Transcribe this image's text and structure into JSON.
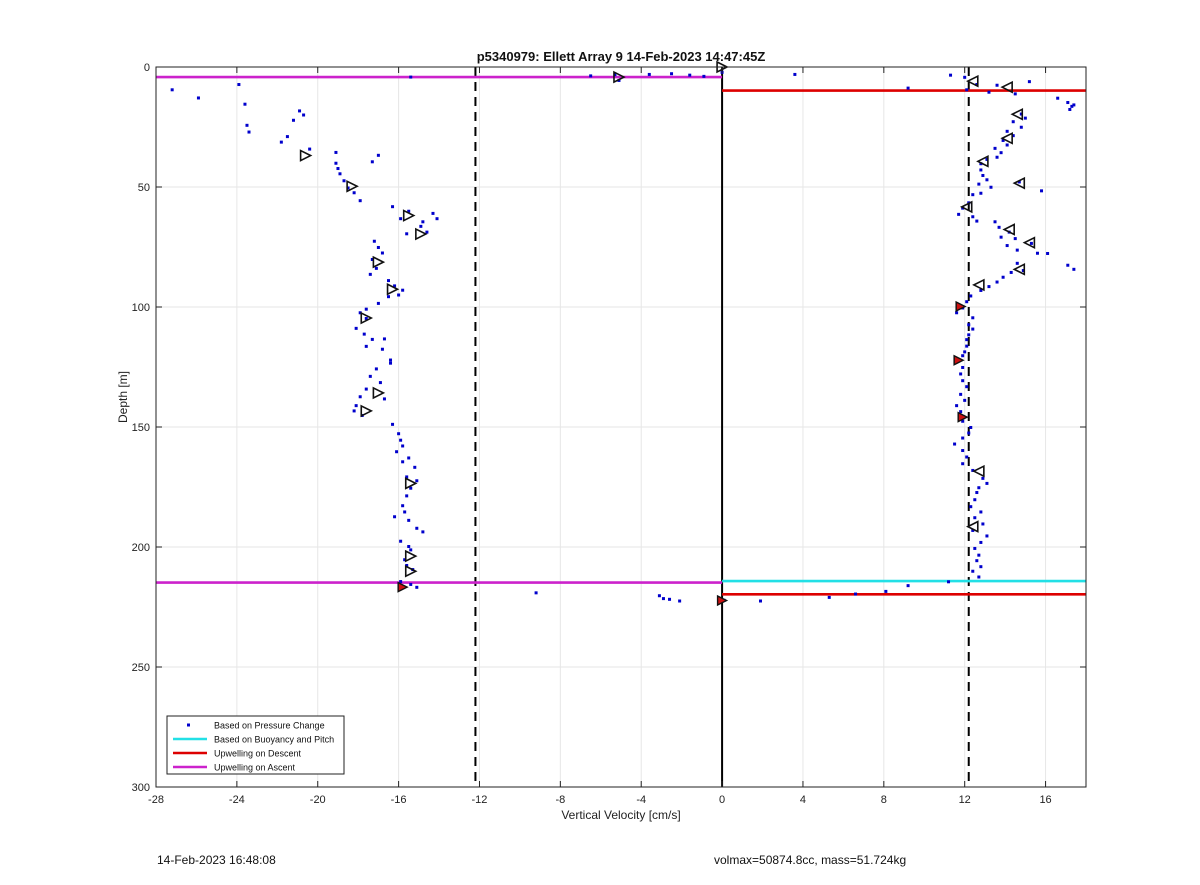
{
  "chart_data": {
    "type": "scatter",
    "title": "p5340979: Ellett Array 9 14-Feb-2023 14:47:45Z",
    "xlabel": "Vertical Velocity [cm/s]",
    "ylabel": "Depth [m]",
    "xlim": [
      -28,
      18
    ],
    "ylim": [
      300,
      0
    ],
    "y_reversed": true,
    "grid": true,
    "xticks": [
      "-28",
      "-24",
      "-20",
      "-16",
      "-12",
      "-8",
      "-4",
      "0",
      "4",
      "8",
      "12",
      "16"
    ],
    "xtick_values": [
      -28,
      -24,
      -20,
      -16,
      -12,
      -8,
      -4,
      0,
      4,
      8,
      12,
      16
    ],
    "yticks": [
      "0",
      "50",
      "100",
      "150",
      "200",
      "250",
      "300"
    ],
    "ytick_values": [
      0,
      50,
      100,
      150,
      200,
      250,
      300
    ],
    "legend_position": "bottom-left",
    "legend": [
      {
        "label": "Based on Pressure Change",
        "color": "#0000cc",
        "style": "dot"
      },
      {
        "label": "Based on Buoyancy and Pitch",
        "color": "#22e0e6",
        "style": "line"
      },
      {
        "label": "Upwelling on Descent",
        "color": "#dd0000",
        "style": "line"
      },
      {
        "label": "Upwelling on Ascent",
        "color": "#cc22cc",
        "style": "line"
      }
    ],
    "vertical_lines": [
      {
        "x": 0,
        "style": "solid",
        "color": "#000000"
      },
      {
        "x": -12.2,
        "style": "dashed",
        "color": "#000000"
      },
      {
        "x": 12.2,
        "style": "dashed",
        "color": "#000000"
      }
    ],
    "series": [
      {
        "name": "Based on Pressure Change",
        "color": "#0000cc",
        "points": [
          [
            -27.2,
            9.5
          ],
          [
            -25.9,
            12.9
          ],
          [
            -23.9,
            7.3
          ],
          [
            -23.6,
            15.5
          ],
          [
            -23.5,
            24.3
          ],
          [
            -23.4,
            27.1
          ],
          [
            -21.8,
            31.3
          ],
          [
            -21.5,
            29
          ],
          [
            -21.2,
            22.2
          ],
          [
            -20.9,
            18.3
          ],
          [
            -20.7,
            20
          ],
          [
            -20.4,
            34.2
          ],
          [
            -19.1,
            35.6
          ],
          [
            -19.1,
            40.1
          ],
          [
            -19,
            42.3
          ],
          [
            -18.9,
            44.5
          ],
          [
            -18.7,
            47.4
          ],
          [
            -18.5,
            50.4
          ],
          [
            -18.2,
            52.4
          ],
          [
            -17.9,
            55.7
          ],
          [
            -17.3,
            39.5
          ],
          [
            -17,
            36.8
          ],
          [
            -16.3,
            58.2
          ],
          [
            -15.5,
            60.1
          ],
          [
            -15.6,
            69.5
          ],
          [
            -15.9,
            63.2
          ],
          [
            -14.9,
            66.4
          ],
          [
            -14.6,
            68.8
          ],
          [
            -14.1,
            63.2
          ],
          [
            -14.3,
            61
          ],
          [
            -14.8,
            64.5
          ],
          [
            -17.2,
            72.6
          ],
          [
            -17,
            75.2
          ],
          [
            -16.8,
            77.5
          ],
          [
            -17.3,
            80.2
          ],
          [
            -17.1,
            83.9
          ],
          [
            -17.4,
            86.4
          ],
          [
            -16.5,
            89
          ],
          [
            -16.2,
            91.2
          ],
          [
            -16,
            95
          ],
          [
            -15.8,
            93
          ],
          [
            -16.5,
            95.7
          ],
          [
            -17,
            98.5
          ],
          [
            -17.6,
            100.9
          ],
          [
            -17.9,
            102.4
          ],
          [
            -17.6,
            104.8
          ],
          [
            -18.1,
            108.9
          ],
          [
            -17.7,
            111.3
          ],
          [
            -17.3,
            113.5
          ],
          [
            -17.6,
            116.4
          ],
          [
            -16.8,
            117.6
          ],
          [
            -16.7,
            113.3
          ],
          [
            -16.4,
            122.1
          ],
          [
            -16.4,
            123.4
          ],
          [
            -17.1,
            125.8
          ],
          [
            -17.4,
            128.9
          ],
          [
            -16.9,
            131.5
          ],
          [
            -17.6,
            134.2
          ],
          [
            -17.9,
            137.4
          ],
          [
            -18.1,
            141.1
          ],
          [
            -18.2,
            143.3
          ],
          [
            -17.8,
            145.2
          ],
          [
            -16.7,
            138.3
          ],
          [
            -16.3,
            148.9
          ],
          [
            -16,
            152.8
          ],
          [
            -15.9,
            155.5
          ],
          [
            -15.8,
            157.9
          ],
          [
            -16.1,
            160.3
          ],
          [
            -15.5,
            162.9
          ],
          [
            -15.8,
            164.5
          ],
          [
            -15.2,
            166.8
          ],
          [
            -15.6,
            170.8
          ],
          [
            -15.1,
            172.4
          ],
          [
            -15.4,
            175.5
          ],
          [
            -15.6,
            178.7
          ],
          [
            -15.8,
            182.8
          ],
          [
            -15.7,
            185.4
          ],
          [
            -16.2,
            187.4
          ],
          [
            -15.5,
            188.9
          ],
          [
            -15.1,
            192.2
          ],
          [
            -14.8,
            193.7
          ],
          [
            -15.9,
            197.6
          ],
          [
            -15.5,
            199.8
          ],
          [
            -15.4,
            201.2
          ],
          [
            -15.7,
            205.3
          ],
          [
            -15.6,
            207.7
          ],
          [
            -15.3,
            209.4
          ],
          [
            -15.9,
            214.4
          ],
          [
            -15.4,
            215.6
          ],
          [
            -15.1,
            216.8
          ],
          [
            -15.4,
            4.2
          ],
          [
            -6.5,
            3.7
          ],
          [
            -5.3,
            3.2
          ],
          [
            -5.1,
            5.6
          ],
          [
            -3.6,
            3.1
          ],
          [
            -2.5,
            2.8
          ],
          [
            -1.6,
            3.4
          ],
          [
            -0.9,
            3.9
          ],
          [
            0,
            2.2
          ],
          [
            3.6,
            3.1
          ],
          [
            -9.2,
            219.1
          ],
          [
            -3.1,
            220.3
          ],
          [
            -2.9,
            221.5
          ],
          [
            -2.6,
            221.8
          ],
          [
            -2.1,
            222.5
          ],
          [
            0.1,
            222.2
          ],
          [
            1.9,
            222.5
          ],
          [
            5.3,
            221
          ],
          [
            6.6,
            219.6
          ],
          [
            8.1,
            218.5
          ],
          [
            9.2,
            216.1
          ],
          [
            11.2,
            214.5
          ],
          [
            9.2,
            8.8
          ],
          [
            11.3,
            3.4
          ],
          [
            12,
            4.3
          ],
          [
            12.1,
            9.5
          ],
          [
            12.6,
            7.3
          ],
          [
            13.2,
            10.5
          ],
          [
            13.6,
            7.6
          ],
          [
            14.5,
            11.2
          ],
          [
            15.2,
            6.1
          ],
          [
            16.6,
            13
          ],
          [
            17.1,
            14.8
          ],
          [
            17.3,
            16.4
          ],
          [
            17.2,
            17.7
          ],
          [
            17.4,
            15.8
          ],
          [
            14.8,
            19.6
          ],
          [
            15,
            21.3
          ],
          [
            14.4,
            22.8
          ],
          [
            14.8,
            25.1
          ],
          [
            14.1,
            26.8
          ],
          [
            14.4,
            28.6
          ],
          [
            13.9,
            30.6
          ],
          [
            14.1,
            32.5
          ],
          [
            13.5,
            33.9
          ],
          [
            13.8,
            35.7
          ],
          [
            13.6,
            37.6
          ],
          [
            13.1,
            38.5
          ],
          [
            12.8,
            40.3
          ],
          [
            12.8,
            42.9
          ],
          [
            12.9,
            45.2
          ],
          [
            13.1,
            47
          ],
          [
            12.7,
            48.8
          ],
          [
            13.3,
            50.1
          ],
          [
            12.8,
            52.6
          ],
          [
            15.8,
            51.6
          ],
          [
            14.7,
            47.9
          ],
          [
            12.4,
            53.2
          ],
          [
            12.2,
            56.6
          ],
          [
            11.9,
            58.8
          ],
          [
            11.7,
            61.4
          ],
          [
            12.4,
            62.4
          ],
          [
            12.6,
            64.2
          ],
          [
            13.5,
            64.5
          ],
          [
            13.7,
            66.8
          ],
          [
            14.2,
            68.8
          ],
          [
            13.8,
            70.9
          ],
          [
            14.5,
            71.5
          ],
          [
            14.1,
            74.4
          ],
          [
            15.3,
            73.5
          ],
          [
            14.6,
            76.3
          ],
          [
            15.6,
            77.6
          ],
          [
            16.1,
            77.7
          ],
          [
            17.1,
            82.6
          ],
          [
            17.4,
            84.3
          ],
          [
            14.6,
            81.8
          ],
          [
            14.9,
            84.8
          ],
          [
            14.3,
            85.6
          ],
          [
            13.9,
            87.6
          ],
          [
            13.6,
            89.6
          ],
          [
            13.2,
            91.5
          ],
          [
            12.8,
            93.1
          ],
          [
            12.3,
            95.4
          ],
          [
            12.1,
            97.8
          ],
          [
            11.9,
            100.4
          ],
          [
            11.6,
            102.4
          ],
          [
            12.4,
            104.5
          ],
          [
            12.2,
            107.4
          ],
          [
            12.4,
            109.2
          ],
          [
            12.2,
            111.6
          ],
          [
            12.1,
            113.6
          ],
          [
            12.1,
            116.3
          ],
          [
            12,
            118.7
          ],
          [
            11.9,
            120.3
          ],
          [
            11.7,
            122.5
          ],
          [
            11.9,
            125.2
          ],
          [
            11.8,
            127.9
          ],
          [
            11.9,
            130.7
          ],
          [
            12.1,
            133.2
          ],
          [
            11.8,
            136.4
          ],
          [
            12,
            138.9
          ],
          [
            11.6,
            141.1
          ],
          [
            11.8,
            143.6
          ],
          [
            11.9,
            147.6
          ],
          [
            12.3,
            150.2
          ],
          [
            12.2,
            152.5
          ],
          [
            11.9,
            154.6
          ],
          [
            11.5,
            157.1
          ],
          [
            11.9,
            159.8
          ],
          [
            12.1,
            162.5
          ],
          [
            11.9,
            165.3
          ],
          [
            12.4,
            168.1
          ],
          [
            12.9,
            171.4
          ],
          [
            13.1,
            173.5
          ],
          [
            12.7,
            175.3
          ],
          [
            12.6,
            177.3
          ],
          [
            12.5,
            180.3
          ],
          [
            12.3,
            183.2
          ],
          [
            12.8,
            185.4
          ],
          [
            12.5,
            187.8
          ],
          [
            12.9,
            190.4
          ],
          [
            12.4,
            193.1
          ],
          [
            13.1,
            195.4
          ],
          [
            12.8,
            198.1
          ],
          [
            12.5,
            200.6
          ],
          [
            12.7,
            203.4
          ],
          [
            12.6,
            205.7
          ],
          [
            12.8,
            208.2
          ],
          [
            12.4,
            210.1
          ],
          [
            12.7,
            212.5
          ]
        ]
      },
      {
        "name": "Based on Buoyancy and Pitch",
        "color": "#22e0e6",
        "segments": [
          [
            [
              0,
              214.2
            ],
            [
              18,
              214.2
            ]
          ]
        ]
      },
      {
        "name": "Upwelling on Descent",
        "color": "#dd0000",
        "segments": [
          [
            [
              0,
              9.8
            ],
            [
              18,
              9.8
            ]
          ],
          [
            [
              0,
              219.7
            ],
            [
              18,
              219.7
            ]
          ]
        ]
      },
      {
        "name": "Upwelling on Ascent",
        "color": "#cc22cc",
        "segments": [
          [
            [
              -28,
              4.2
            ],
            [
              0,
              4.2
            ]
          ],
          [
            [
              -28,
              214.8
            ],
            [
              0,
              214.8
            ]
          ]
        ]
      }
    ],
    "markers": {
      "descent_triangles": [
        [
          12.4,
          5.9
        ],
        [
          14.1,
          8.4
        ],
        [
          14.6,
          19.7
        ],
        [
          14.1,
          29.7
        ],
        [
          12.9,
          39.3
        ],
        [
          14.7,
          48.4
        ],
        [
          12.1,
          58.3
        ],
        [
          14.2,
          67.7
        ],
        [
          15.2,
          73.2
        ],
        [
          14.7,
          84.3
        ],
        [
          12.7,
          90.8
        ],
        [
          12.7,
          168.4
        ],
        [
          12.4,
          191.5
        ]
      ],
      "ascent_triangles": [
        [
          -20.6,
          36.9
        ],
        [
          -18.3,
          49.7
        ],
        [
          -15.5,
          61.9
        ],
        [
          -14.9,
          69.6
        ],
        [
          -17.0,
          81.3
        ],
        [
          -16.3,
          92.6
        ],
        [
          -17.6,
          104.6
        ],
        [
          -17.0,
          135.8
        ],
        [
          -17.6,
          143.3
        ],
        [
          -15.4,
          173.5
        ],
        [
          -15.4,
          203.8
        ],
        [
          -15.4,
          210.1
        ],
        [
          -5.1,
          4.2
        ],
        [
          0,
          0
        ]
      ],
      "red_markers": [
        [
          11.8,
          99.8
        ],
        [
          11.7,
          122.2
        ],
        [
          11.9,
          145.9
        ],
        [
          -15.8,
          216.7
        ],
        [
          0,
          222.3
        ]
      ]
    }
  },
  "footer": {
    "left_text": "14-Feb-2023 16:48:08",
    "right_text": "volmax=50874.8cc, mass=51.724kg"
  }
}
